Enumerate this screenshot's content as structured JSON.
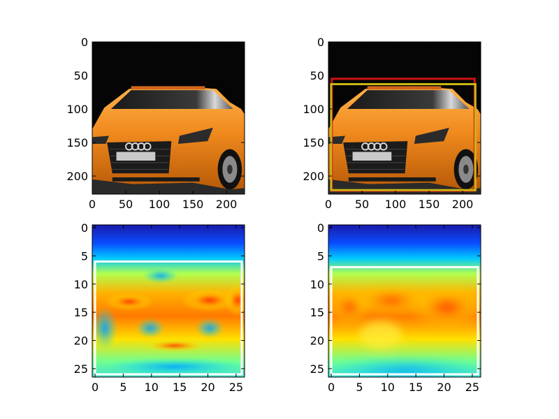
{
  "chart_data": [
    {
      "type": "image",
      "panel": "top-left",
      "content": "photo of an orange sports car",
      "xlim": [
        0,
        227
      ],
      "ylim": [
        227,
        0
      ],
      "xticks": [
        0,
        50,
        100,
        150,
        200
      ],
      "yticks": [
        0,
        50,
        100,
        150,
        200
      ],
      "boxes": []
    },
    {
      "type": "image",
      "panel": "top-right",
      "content": "photo of an orange sports car with two bounding boxes",
      "xlim": [
        0,
        227
      ],
      "ylim": [
        227,
        0
      ],
      "xticks": [
        0,
        50,
        100,
        150,
        200
      ],
      "yticks": [
        0,
        50,
        100,
        150,
        200
      ],
      "boxes": [
        {
          "color": "#cc1111",
          "x0": 5,
          "y0": 55,
          "x1": 218,
          "y1": 222
        },
        {
          "color": "#c9b616",
          "x0": 4,
          "y0": 63,
          "x1": 219,
          "y1": 221
        }
      ]
    },
    {
      "type": "heatmap",
      "panel": "bottom-left",
      "colormap": "jet",
      "xlim": [
        -0.5,
        26.5
      ],
      "ylim": [
        26.5,
        -0.5
      ],
      "xticks": [
        0,
        5,
        10,
        15,
        20,
        25
      ],
      "yticks": [
        0,
        5,
        10,
        15,
        20,
        25
      ],
      "boxes": [
        {
          "color": "#ffffff",
          "x0": 0,
          "y0": 6,
          "x1": 26,
          "y1": 26
        }
      ]
    },
    {
      "type": "heatmap",
      "panel": "bottom-right",
      "colormap": "jet",
      "xlim": [
        -0.5,
        26.5
      ],
      "ylim": [
        26.5,
        -0.5
      ],
      "xticks": [
        0,
        5,
        10,
        15,
        20,
        25
      ],
      "yticks": [
        0,
        5,
        10,
        15,
        20,
        25
      ],
      "boxes": [
        {
          "color": "#ffffff",
          "x0": 0,
          "y0": 7,
          "x1": 26,
          "y1": 26
        }
      ]
    }
  ]
}
